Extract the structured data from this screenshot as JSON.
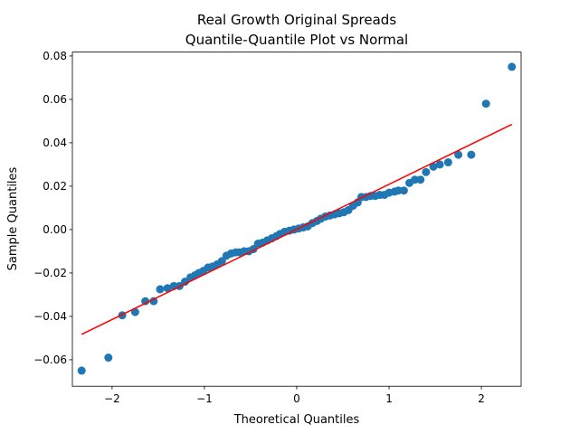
{
  "chart_data": {
    "type": "scatter",
    "title": [
      "Real Growth Original Spreads",
      "Quantile-Quantile Plot vs Normal"
    ],
    "x_label": "Theoretical Quantiles",
    "y_label": "Sample Quantiles",
    "xlim": [
      -2.43,
      2.43
    ],
    "ylim": [
      -0.0722,
      0.0818
    ],
    "xticks": [
      {
        "value": -2,
        "label": "−2"
      },
      {
        "value": -1,
        "label": "−1"
      },
      {
        "value": 0,
        "label": "0"
      },
      {
        "value": 1,
        "label": "1"
      },
      {
        "value": 2,
        "label": "2"
      }
    ],
    "yticks": [
      {
        "value": -0.06,
        "label": "−0.06"
      },
      {
        "value": -0.04,
        "label": "−0.04"
      },
      {
        "value": -0.02,
        "label": "−0.02"
      },
      {
        "value": 0,
        "label": "0.00"
      },
      {
        "value": 0.02,
        "label": "0.02"
      },
      {
        "value": 0.04,
        "label": "0.04"
      },
      {
        "value": 0.06,
        "label": "0.06"
      },
      {
        "value": 0.08,
        "label": "0.08"
      }
    ],
    "grid": false,
    "series": [
      {
        "color": "#1f77b4",
        "x": [
          -2.33,
          -2.04,
          -1.89,
          -1.75,
          -1.64,
          -1.55,
          -1.48,
          -1.4,
          -1.33,
          -1.27,
          -1.21,
          -1.15,
          -1.1,
          -1.06,
          -1.01,
          -0.96,
          -0.91,
          -0.86,
          -0.81,
          -0.76,
          -0.71,
          -0.66,
          -0.62,
          -0.57,
          -0.52,
          -0.47,
          -0.42,
          -0.37,
          -0.32,
          -0.27,
          -0.22,
          -0.18,
          -0.13,
          -0.08,
          -0.03,
          0.02,
          0.07,
          0.12,
          0.17,
          0.22,
          0.26,
          0.31,
          0.36,
          0.41,
          0.46,
          0.51,
          0.56,
          0.61,
          0.66,
          0.7,
          0.75,
          0.8,
          0.85,
          0.9,
          0.95,
          1.0,
          1.06,
          1.1,
          1.16,
          1.22,
          1.28,
          1.34,
          1.4,
          1.48,
          1.55,
          1.64,
          1.75,
          1.89,
          2.05,
          2.33
        ],
        "values": [
          -0.065,
          -0.059,
          -0.0395,
          -0.038,
          -0.033,
          -0.033,
          -0.0275,
          -0.027,
          -0.026,
          -0.026,
          -0.024,
          -0.022,
          -0.021,
          -0.02,
          -0.019,
          -0.0175,
          -0.017,
          -0.016,
          -0.0145,
          -0.012,
          -0.011,
          -0.0105,
          -0.0105,
          -0.01,
          -0.01,
          -0.009,
          -0.0065,
          -0.006,
          -0.005,
          -0.004,
          -0.003,
          -0.002,
          -0.001,
          -0.0005,
          0,
          0.0005,
          0.001,
          0.0015,
          0.003,
          0.004,
          0.005,
          0.006,
          0.0065,
          0.007,
          0.0075,
          0.008,
          0.009,
          0.011,
          0.0125,
          0.015,
          0.015,
          0.0155,
          0.0155,
          0.016,
          0.016,
          0.017,
          0.0175,
          0.018,
          0.018,
          0.0215,
          0.023,
          0.023,
          0.0265,
          0.029,
          0.03,
          0.031,
          0.0345,
          0.0345,
          0.058,
          0.075
        ]
      }
    ],
    "line": {
      "color": "#ff0000",
      "x": [
        -2.33,
        2.33
      ],
      "values": [
        -0.0483,
        0.0485
      ]
    }
  }
}
